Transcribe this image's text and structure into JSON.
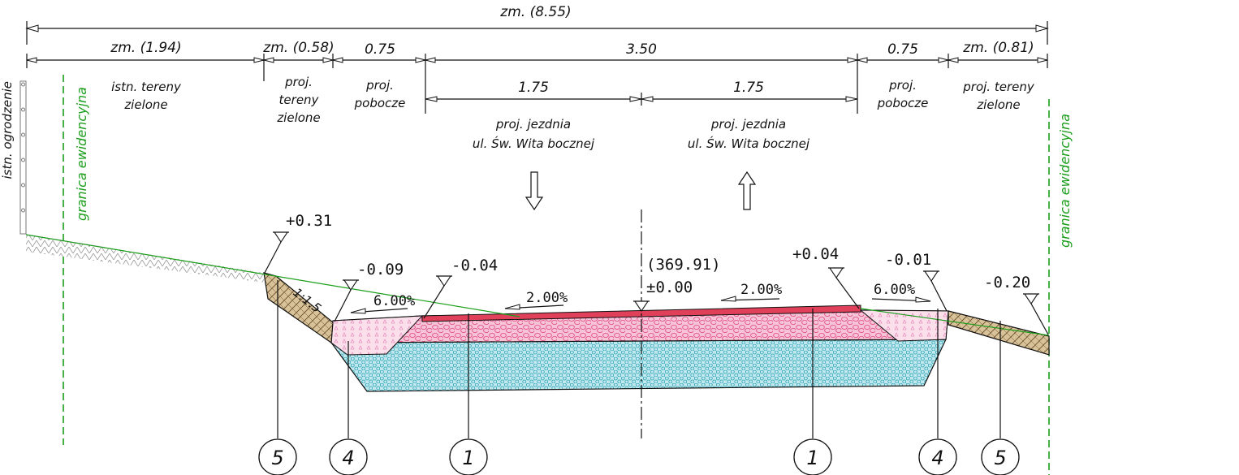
{
  "dimensions": {
    "total": "zm. (8.55)",
    "segments": [
      "zm. (1.94)",
      "zm. (0.58)",
      "0.75",
      "3.50",
      "0.75",
      "zm. (0.81)"
    ],
    "lane_left": "1.75",
    "lane_right": "1.75"
  },
  "zones": {
    "left_green": [
      "istn. tereny",
      "zielone"
    ],
    "proj_green_left": [
      "proj.",
      "tereny",
      "zielone"
    ],
    "shoulder_left": [
      "proj.",
      "pobocze"
    ],
    "lane_left": [
      "proj. jezdnia",
      "ul. Św. Wita bocznej"
    ],
    "lane_right": [
      "proj. jezdnia",
      "ul. Św. Wita bocznej"
    ],
    "shoulder_right": [
      "proj.",
      "pobocze"
    ],
    "proj_green_right": [
      "proj. tereny",
      "zielone"
    ]
  },
  "labels": {
    "fence": "istn. ogrodzenie",
    "boundary_left": "granica ewidencyjna",
    "boundary_right": "granica ewidencyjna"
  },
  "levels": {
    "l1": "+0.31",
    "l2": "-0.09",
    "l3": "-0.04",
    "axis_elev": "(369.91)",
    "axis_zero": "±0.00",
    "r1": "+0.04",
    "r2": "-0.01",
    "r3": "-0.20"
  },
  "slopes": {
    "slope_ratio": "1:1.5",
    "left_shoulder": "6.00%",
    "left_lane": "2.00%",
    "right_lane": "2.00%",
    "right_shoulder": "6.00%"
  },
  "callouts": [
    "5",
    "4",
    "1",
    "1",
    "4",
    "5"
  ],
  "colors": {
    "boundary": "#1a9e1a",
    "asphalt": "#e0405a",
    "base": "#f4a6c8",
    "subbase": "#41b8c8",
    "soil": "#8a6a40"
  }
}
